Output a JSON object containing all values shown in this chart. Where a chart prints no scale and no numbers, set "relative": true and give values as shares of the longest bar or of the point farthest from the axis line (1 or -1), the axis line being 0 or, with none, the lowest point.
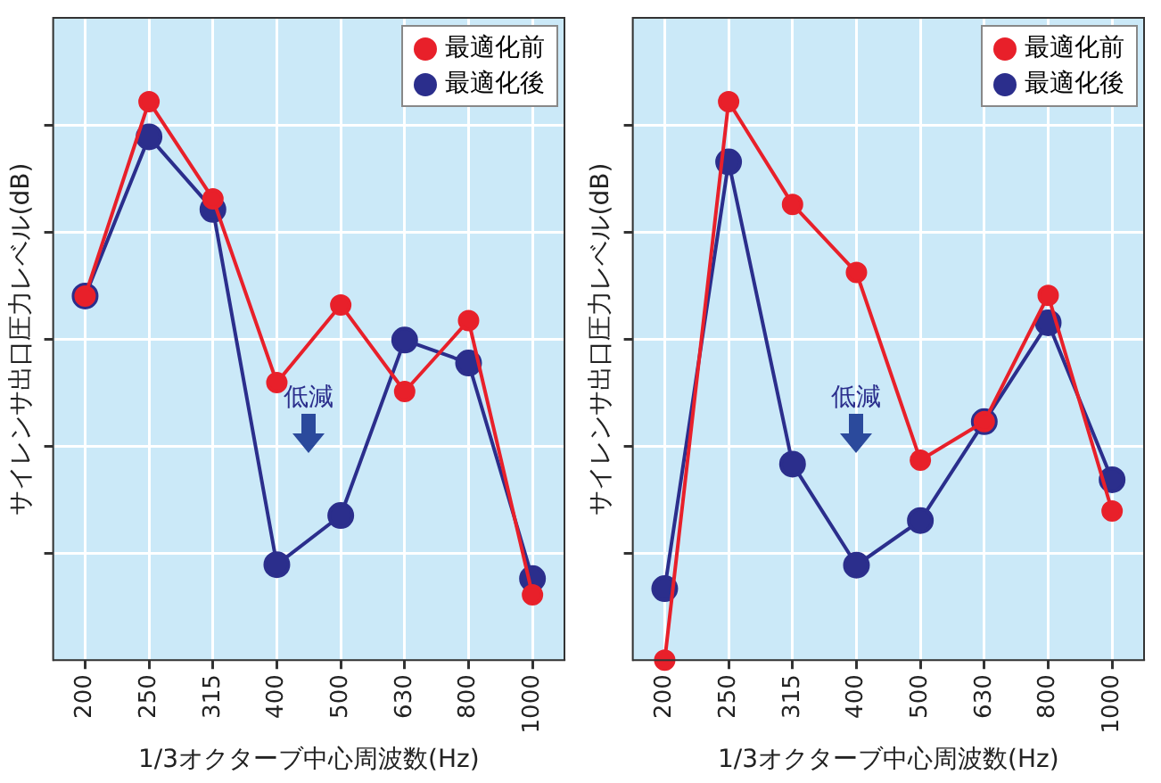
{
  "chart_data": [
    {
      "type": "line",
      "relative": true,
      "xlabel": "1/3オクターブ中心周波数(Hz)",
      "ylabel": "サイレンサ出口圧力レベル(dB)",
      "categories": [
        "200",
        "250",
        "315",
        "400",
        "500",
        "630",
        "800",
        "1000"
      ],
      "grid": true,
      "legend": "top right",
      "marker": "circle",
      "line_style": "solid",
      "annotations": [
        "低減"
      ],
      "series": [
        {
          "name": "最適化前",
          "color": "#e8202a",
          "values": [
            0.652,
            1,
            0.826,
            0.497,
            0.636,
            0.481,
            0.608,
            0.117
          ]
        },
        {
          "name": "最適化後",
          "color": "#2b2e8c",
          "values": [
            0.652,
            0.937,
            0.807,
            0.171,
            0.259,
            0.573,
            0.532,
            0.146
          ]
        }
      ]
    },
    {
      "type": "line",
      "relative": true,
      "xlabel": "1/3オクターブ中心周波数(Hz)",
      "ylabel": "サイレンサ出口圧力レベル(dB)",
      "categories": [
        "200",
        "250",
        "315",
        "400",
        "500",
        "630",
        "800",
        "1000"
      ],
      "grid": true,
      "legend": "top right",
      "marker": "circle",
      "line_style": "solid",
      "annotations": [
        "低減"
      ],
      "series": [
        {
          "name": "最適化前",
          "color": "#e8202a",
          "values": [
            0,
            1,
            0.816,
            0.694,
            0.358,
            0.427,
            0.653,
            0.267
          ]
        },
        {
          "name": "最適化後",
          "color": "#2b2e8c",
          "values": [
            0.128,
            0.892,
            0.351,
            0.17,
            0.25,
            0.427,
            0.604,
            0.323
          ]
        }
      ]
    }
  ]
}
